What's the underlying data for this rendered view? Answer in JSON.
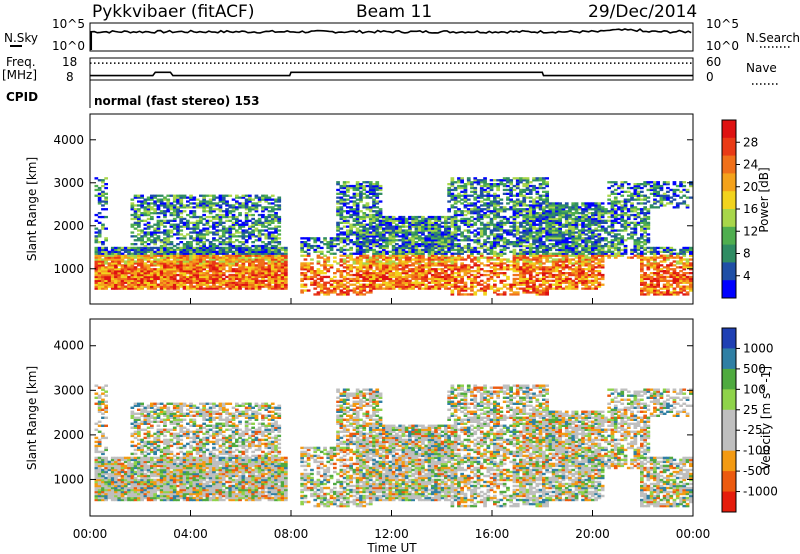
{
  "header": {
    "station": "Pykkvibaer (fitACF)",
    "beam": "Beam 11",
    "date": "29/Dec/2014"
  },
  "colors": {
    "power": [
      "#0000ff",
      "#1f4fa6",
      "#2f8c63",
      "#4fae4f",
      "#a8d64a",
      "#f2d31d",
      "#f4a21b",
      "#f0701a",
      "#e93a16",
      "#de1212"
    ],
    "velocity": [
      "#e51c0c",
      "#ec5a0f",
      "#f39a12",
      "#bfbfbf",
      "#bfbfbf",
      "#8fd34a",
      "#4faa3f",
      "#2f7fa4",
      "#1f40b3"
    ]
  },
  "chart_data": [
    {
      "type": "line",
      "panel": "nsky-nsearch",
      "labels_left": [
        "N.Sky"
      ],
      "labels_right": [
        "N.Search"
      ],
      "yticks_left": [
        "10^5",
        "10^0"
      ],
      "yticks_right": [
        "10^5",
        "10^0"
      ],
      "yscale": "log",
      "ylim": [
        1,
        100000
      ]
    },
    {
      "type": "line",
      "panel": "freq-nave",
      "ylabel_left": "Freq. [MHz]",
      "ylabel_right": "Nave",
      "yticks_left": [
        "18",
        "8"
      ],
      "yticks_right": [
        "60",
        "0"
      ],
      "freq_x": [
        0,
        2.5,
        2.6,
        3.2,
        3.3,
        7.95,
        8.0,
        18.0,
        18.05,
        24
      ],
      "freq_y": [
        10.0,
        10.0,
        11.5,
        11.5,
        10.0,
        10.0,
        11.5,
        11.5,
        10.0,
        10.0
      ],
      "nave_value": 46
    },
    {
      "type": "line",
      "panel": "cpid",
      "label": "CPID",
      "text": "normal (fast stereo) 153"
    },
    {
      "type": "heatmap",
      "panel": "power",
      "ylabel": "Slant Range [km]",
      "yticks": [
        1000,
        2000,
        3000,
        4000
      ],
      "ylim": [
        180,
        4600
      ],
      "xlim": [
        0,
        24
      ],
      "colorbar_label": "Power [dB]",
      "colorbar_ticks": [
        "28",
        "24",
        "20",
        "16",
        "12",
        "8",
        "4"
      ],
      "colorbar_range": [
        0,
        30
      ]
    },
    {
      "type": "heatmap",
      "panel": "velocity",
      "ylabel": "Slant Range [km]",
      "yticks": [
        1000,
        2000,
        3000,
        4000
      ],
      "ylim": [
        180,
        4600
      ],
      "xlim": [
        0,
        24
      ],
      "colorbar_label": "Velocity [m s^-1]",
      "colorbar_ticks": [
        "1000",
        "500",
        "100",
        "25",
        "-25",
        "-100",
        "-500",
        "-1000"
      ],
      "xlabel": "Time UT",
      "xticks": [
        "00:00",
        "04:00",
        "08:00",
        "12:00",
        "16:00",
        "20:00",
        "00:00"
      ]
    }
  ]
}
